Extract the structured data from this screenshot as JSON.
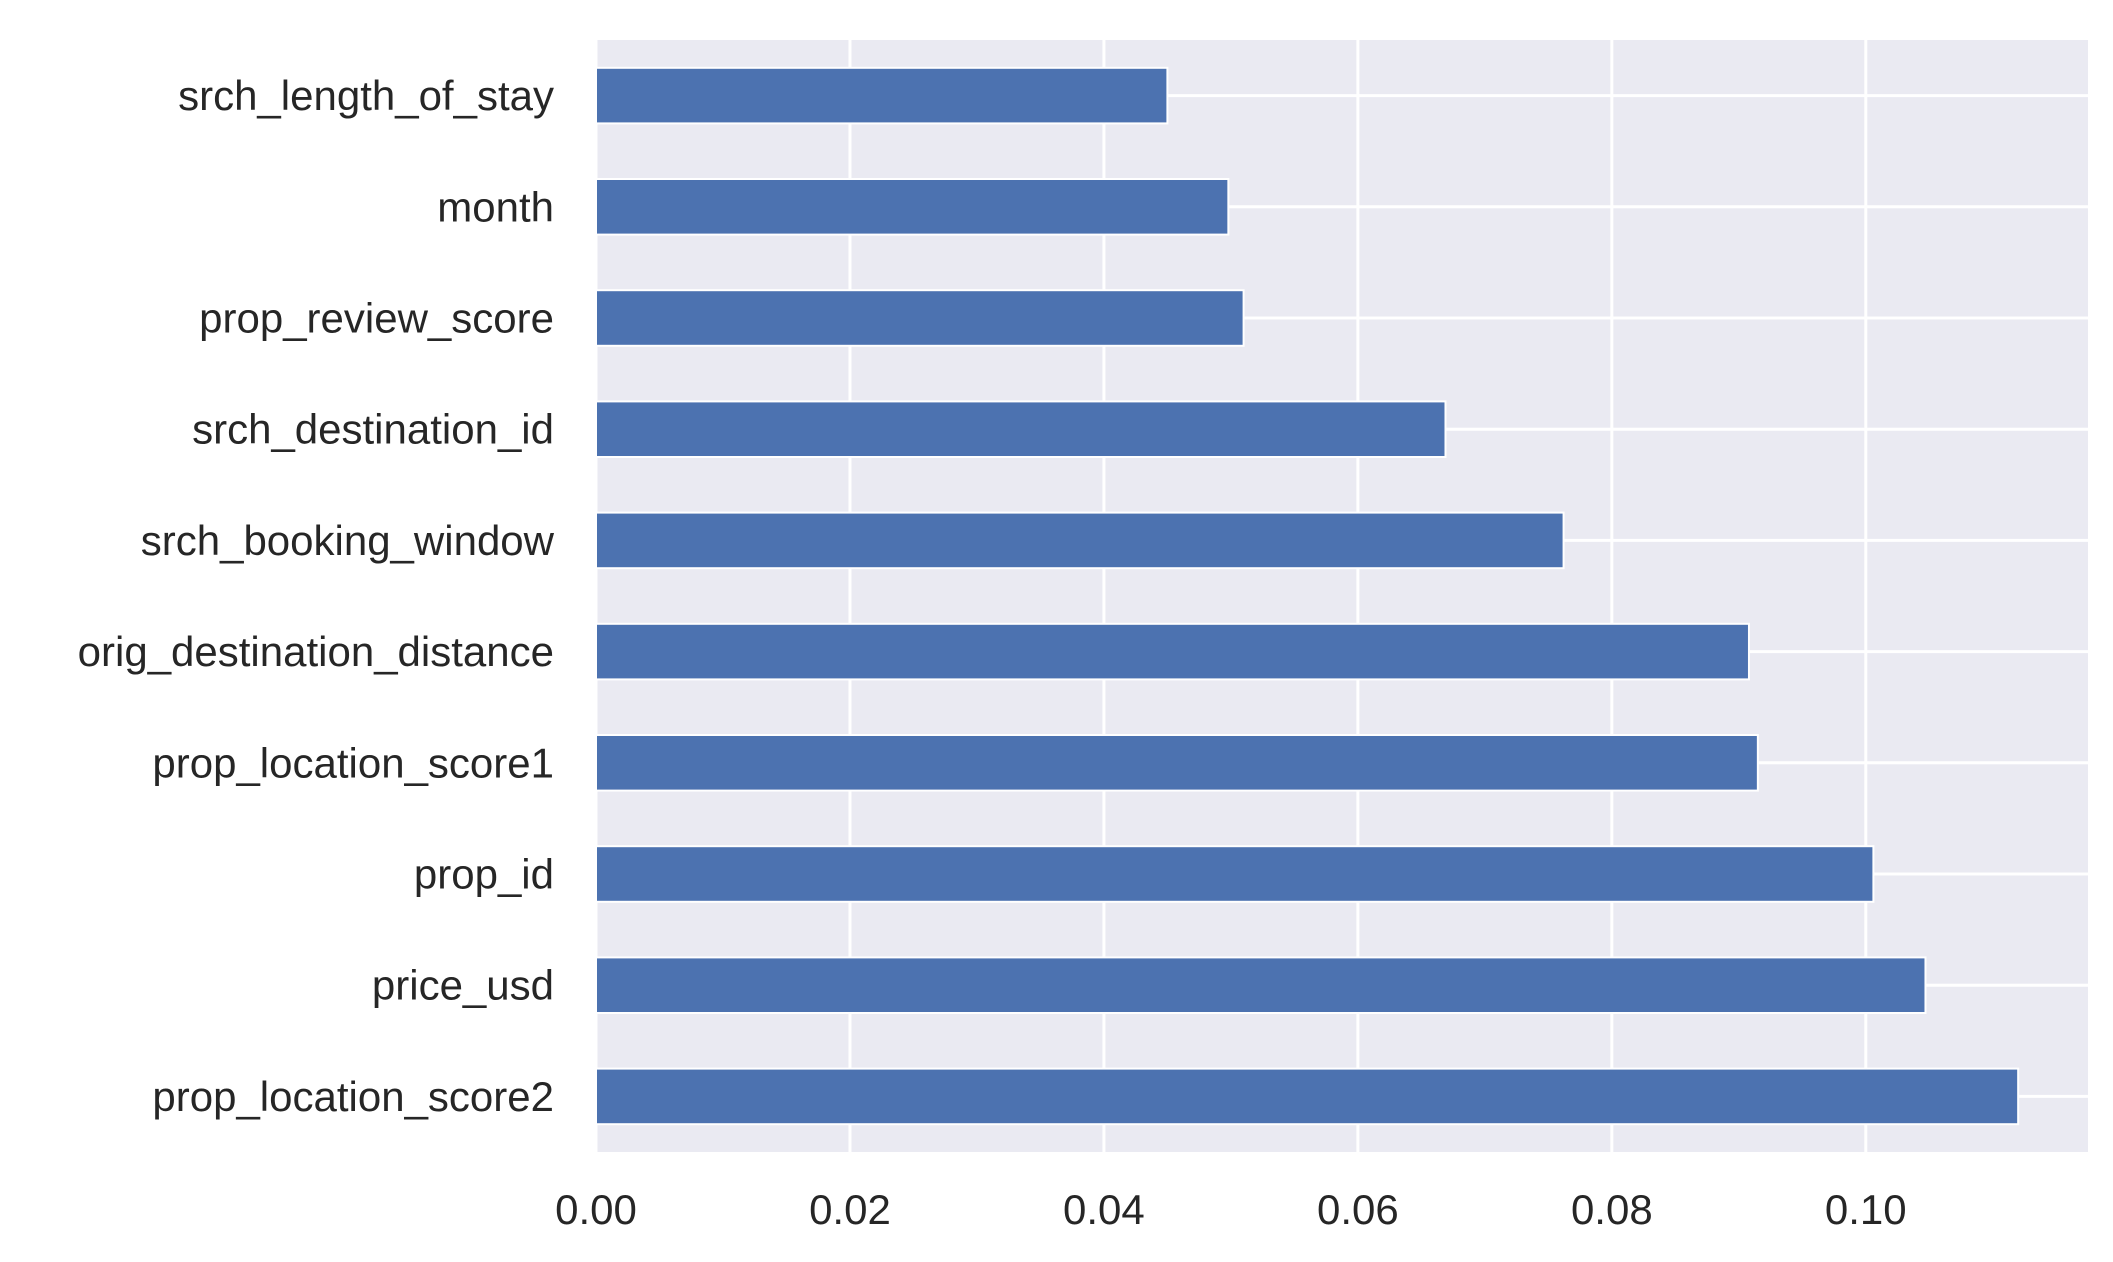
{
  "chart_data": {
    "type": "bar",
    "orientation": "horizontal",
    "categories": [
      "prop_location_score2",
      "price_usd",
      "prop_id",
      "prop_location_score1",
      "orig_destination_distance",
      "srch_booking_window",
      "srch_destination_id",
      "prop_review_score",
      "month",
      "srch_length_of_stay"
    ],
    "values": [
      0.112,
      0.1047,
      0.1006,
      0.0915,
      0.0908,
      0.0762,
      0.0669,
      0.051,
      0.0498,
      0.045
    ],
    "xlim": [
      0,
      0.1175
    ],
    "xticks": [
      "0.00",
      "0.02",
      "0.04",
      "0.06",
      "0.08",
      "0.10"
    ],
    "xtick_values": [
      0,
      0.02,
      0.04,
      0.06,
      0.08,
      0.1
    ],
    "title": "",
    "xlabel": "",
    "ylabel": "",
    "grid": true,
    "legend": "none",
    "colors": {
      "bar": "#4c72b0",
      "plot_background": "#eaeaf2",
      "grid": "#ffffff",
      "text": "#262626"
    }
  }
}
